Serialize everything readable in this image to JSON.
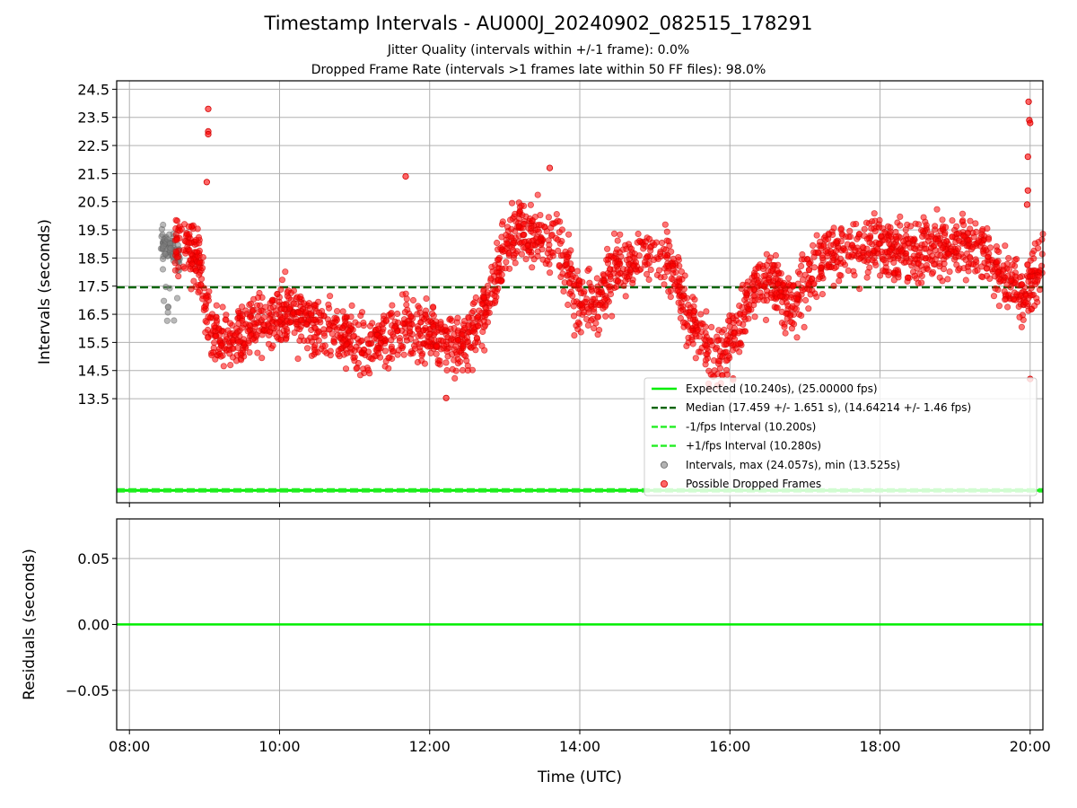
{
  "figure": {
    "title": "Timestamp Intervals - AU000J_20240902_082515_178291",
    "subtitle_1": "Jitter Quality (intervals within +/-1 frame): 0.0%",
    "subtitle_2": "Dropped Frame Rate (intervals >1 frames late within 50 FF files): 98.0%"
  },
  "colors": {
    "expected": "#00ee00",
    "median": "#006400",
    "fps_interval": "#22ee22",
    "intervals": "#808080",
    "dropped": "#ff0000",
    "grid": "#b0b0b0"
  },
  "chart_data": [
    {
      "type": "scatter",
      "panel": "top",
      "ylabel": "Intervals (seconds)",
      "ylim": [
        9.8,
        24.8
      ],
      "yticks": [
        "24.5",
        "23.5",
        "22.5",
        "21.5",
        "20.5",
        "19.5",
        "18.5",
        "17.5",
        "16.5",
        "15.5",
        "14.5",
        "13.5"
      ],
      "xlim_hours": [
        7.83,
        20.17
      ],
      "grid": true,
      "legend_position": "lower right",
      "lines": [
        {
          "name": "Expected (10.240s), (25.00000 fps)",
          "y": 10.24,
          "style": "solid",
          "color_key": "expected"
        },
        {
          "name": "Median (17.459 +/- 1.651 s), (14.64214 +/- 1.46 fps)",
          "y": 17.459,
          "style": "dashed",
          "color_key": "median"
        },
        {
          "name": "-1/fps Interval (10.200s)",
          "y": 10.2,
          "style": "dashed",
          "color_key": "fps_interval"
        },
        {
          "name": "+1/fps Interval (10.280s)",
          "y": 10.28,
          "style": "dashed",
          "color_key": "fps_interval"
        }
      ],
      "scatter_series": [
        {
          "name": "Intervals, max (24.057s), min (13.525s)",
          "color_key": "intervals",
          "x_range_hours": [
            8.42,
            8.67
          ],
          "y_range": [
            16.2,
            19.7
          ],
          "approx_points": 90
        },
        {
          "name": "Possible Dropped Frames",
          "color_key": "dropped",
          "x_range_hours": [
            8.6,
            20.17
          ],
          "y_range": [
            13.525,
            24.057
          ],
          "approx_points": 2600
        }
      ],
      "trend": [
        {
          "t": 8.6,
          "y": 18.9
        },
        {
          "t": 8.9,
          "y": 18.6
        },
        {
          "t": 9.1,
          "y": 15.6
        },
        {
          "t": 9.5,
          "y": 15.8
        },
        {
          "t": 9.8,
          "y": 16.3
        },
        {
          "t": 10.1,
          "y": 16.6
        },
        {
          "t": 10.4,
          "y": 16.2
        },
        {
          "t": 10.8,
          "y": 15.8
        },
        {
          "t": 11.2,
          "y": 15.4
        },
        {
          "t": 11.6,
          "y": 16.0
        },
        {
          "t": 12.0,
          "y": 15.9
        },
        {
          "t": 12.3,
          "y": 15.4
        },
        {
          "t": 12.6,
          "y": 15.9
        },
        {
          "t": 12.85,
          "y": 17.6
        },
        {
          "t": 13.1,
          "y": 19.6
        },
        {
          "t": 13.4,
          "y": 19.3
        },
        {
          "t": 13.7,
          "y": 19.2
        },
        {
          "t": 13.95,
          "y": 17.0
        },
        {
          "t": 14.2,
          "y": 16.8
        },
        {
          "t": 14.5,
          "y": 18.2
        },
        {
          "t": 14.9,
          "y": 18.5
        },
        {
          "t": 15.2,
          "y": 18.4
        },
        {
          "t": 15.5,
          "y": 16.2
        },
        {
          "t": 15.8,
          "y": 15.0
        },
        {
          "t": 16.05,
          "y": 15.4
        },
        {
          "t": 16.3,
          "y": 17.6
        },
        {
          "t": 16.6,
          "y": 17.6
        },
        {
          "t": 16.8,
          "y": 16.6
        },
        {
          "t": 17.1,
          "y": 18.2
        },
        {
          "t": 17.5,
          "y": 18.8
        },
        {
          "t": 18.0,
          "y": 18.8
        },
        {
          "t": 18.5,
          "y": 18.7
        },
        {
          "t": 19.0,
          "y": 19.0
        },
        {
          "t": 19.4,
          "y": 18.8
        },
        {
          "t": 19.7,
          "y": 17.6
        },
        {
          "t": 19.95,
          "y": 17.2
        },
        {
          "t": 20.17,
          "y": 18.6
        }
      ],
      "outliers": [
        {
          "t": 9.05,
          "y": 23.8
        },
        {
          "t": 9.05,
          "y": 23.0
        },
        {
          "t": 9.05,
          "y": 22.9
        },
        {
          "t": 9.03,
          "y": 21.2
        },
        {
          "t": 11.68,
          "y": 21.4
        },
        {
          "t": 13.6,
          "y": 21.7
        },
        {
          "t": 12.22,
          "y": 13.525
        },
        {
          "t": 19.98,
          "y": 24.057
        },
        {
          "t": 19.99,
          "y": 23.4
        },
        {
          "t": 20.0,
          "y": 23.3
        },
        {
          "t": 19.97,
          "y": 22.1
        },
        {
          "t": 19.97,
          "y": 20.9
        },
        {
          "t": 19.96,
          "y": 20.4
        },
        {
          "t": 20.0,
          "y": 14.2
        }
      ]
    },
    {
      "type": "line",
      "panel": "bottom",
      "ylabel": "Residuals (seconds)",
      "ylim": [
        -0.08,
        0.08
      ],
      "yticks": [
        "0.05",
        "0.00",
        "−0.05"
      ],
      "yticks_values": [
        0.05,
        0.0,
        -0.05
      ],
      "xlabel": "Time (UTC)",
      "xticks": [
        "08:00",
        "10:00",
        "12:00",
        "14:00",
        "16:00",
        "18:00",
        "20:00"
      ],
      "xticks_hours": [
        8,
        10,
        12,
        14,
        16,
        18,
        20
      ],
      "xlim_hours": [
        7.83,
        20.17
      ],
      "grid": true,
      "series": [
        {
          "name": "residuals",
          "y": 0.0,
          "color_key": "expected"
        }
      ]
    }
  ]
}
